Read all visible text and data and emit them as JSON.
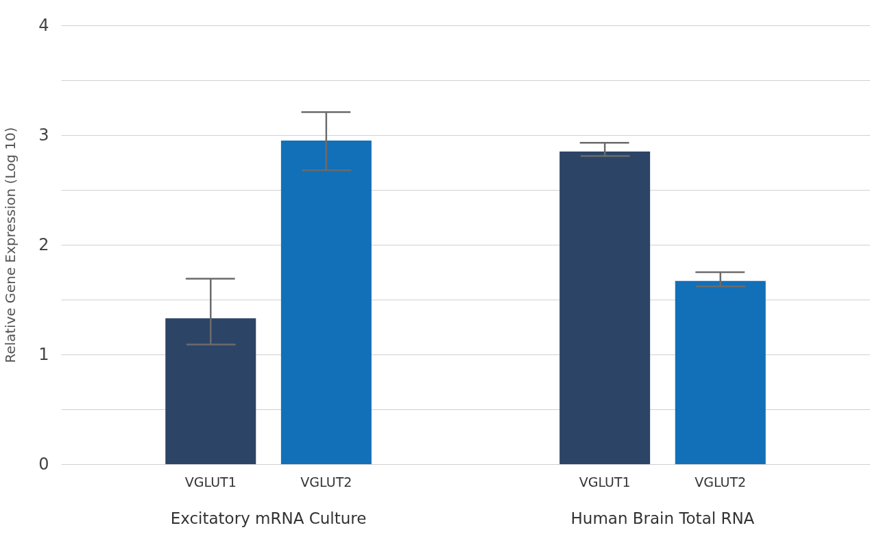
{
  "chart_data": {
    "type": "bar",
    "ylabel": "Relative Gene Expression (Log 10)",
    "categories": [
      "VGLUT1",
      "VGLUT2",
      "VGLUT1",
      "VGLUT2"
    ],
    "values": [
      1.33,
      2.95,
      2.85,
      1.67
    ],
    "colors": [
      "#2c4466",
      "#1270b8",
      "#2c4466",
      "#1270b8"
    ],
    "errors": [
      [
        1.09,
        1.69
      ],
      [
        2.68,
        3.21
      ],
      [
        2.81,
        2.93
      ],
      [
        1.62,
        1.75
      ]
    ],
    "ylim": [
      0,
      4
    ],
    "yticks": [
      0,
      {
        "value": 0.5,
        "label": null
      },
      1,
      {
        "value": 1.5,
        "label": null
      },
      2,
      {
        "value": 2.5,
        "label": null
      },
      3,
      {
        "value": 3.5,
        "label": null
      },
      4
    ],
    "grid": "y",
    "annotations": [
      "Excitatory mRNA Culture",
      "Human Brain Total RNA"
    ]
  }
}
